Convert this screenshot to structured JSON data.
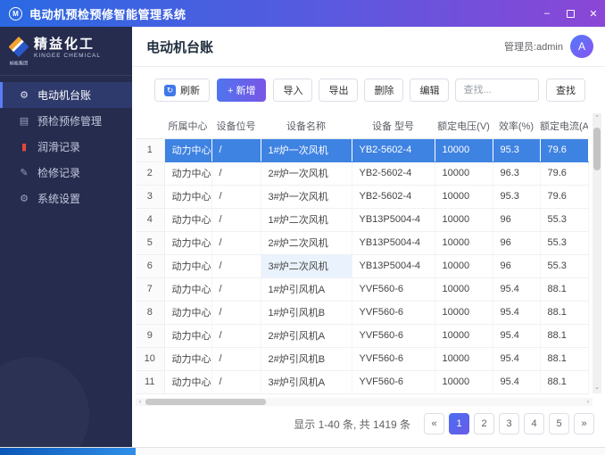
{
  "window": {
    "title": "电动机预检预修智能管理系统",
    "icon_letter": "M",
    "controls": {
      "minimize": "–",
      "close": "✕"
    }
  },
  "sidebar": {
    "logo": {
      "name": "精益化工",
      "sub": "KINGEE CHEMICAL",
      "group": "榆能集团"
    },
    "items": [
      {
        "id": "motor-ledger",
        "label": "电动机台账",
        "icon": "gear-icon",
        "glyph": "⚙",
        "active": true
      },
      {
        "id": "inspection-mgmt",
        "label": "预检预修管理",
        "icon": "clipboard-icon",
        "glyph": "▤",
        "active": false
      },
      {
        "id": "lubrication-records",
        "label": "润滑记录",
        "icon": "oil-icon",
        "glyph": "▮",
        "color": "#e2483c",
        "active": false
      },
      {
        "id": "repair-records",
        "label": "检修记录",
        "icon": "wrench-icon",
        "glyph": "✎",
        "active": false
      },
      {
        "id": "system-settings",
        "label": "系统设置",
        "icon": "settings-gear-icon",
        "glyph": "⚙",
        "active": false
      }
    ]
  },
  "header": {
    "title": "电动机台账",
    "user": "管理员:admin",
    "avatar": "A"
  },
  "toolbar": {
    "refresh": "刷新",
    "refresh_glyph": "↻",
    "add": "+ 新增",
    "import": "导入",
    "export": "导出",
    "delete": "删除",
    "edit": "编辑",
    "search_placeholder": "查找...",
    "search": "查找"
  },
  "table": {
    "columns": [
      "",
      "所属中心",
      "设备位号",
      "设备名称",
      "设备 型号",
      "额定电压(V)",
      "效率(%)",
      "额定电流(A)"
    ],
    "selected_row_index": 0,
    "hover_cell": {
      "row": 5,
      "col": 3
    },
    "rows": [
      [
        "1",
        "动力中心",
        "/",
        "1#炉一次风机",
        "YB2-5602-4",
        "10000",
        "95.3",
        "79.6"
      ],
      [
        "2",
        "动力中心",
        "/",
        "2#炉一次风机",
        "YB2-5602-4",
        "10000",
        "96.3",
        "79.6"
      ],
      [
        "3",
        "动力中心",
        "/",
        "3#炉一次风机",
        "YB2-5602-4",
        "10000",
        "95.3",
        "79.6"
      ],
      [
        "4",
        "动力中心",
        "/",
        "1#炉二次风机",
        "YB13P5004-4",
        "10000",
        "96",
        "55.3"
      ],
      [
        "5",
        "动力中心",
        "/",
        "2#炉二次风机",
        "YB13P5004-4",
        "10000",
        "96",
        "55.3"
      ],
      [
        "6",
        "动力中心",
        "/",
        "3#炉二次风机",
        "YB13P5004-4",
        "10000",
        "96",
        "55.3"
      ],
      [
        "7",
        "动力中心",
        "/",
        "1#炉引风机A",
        "YVF560-6",
        "10000",
        "95.4",
        "88.1"
      ],
      [
        "8",
        "动力中心",
        "/",
        "1#炉引风机B",
        "YVF560-6",
        "10000",
        "95.4",
        "88.1"
      ],
      [
        "9",
        "动力中心",
        "/",
        "2#炉引风机A",
        "YVF560-6",
        "10000",
        "95.4",
        "88.1"
      ],
      [
        "10",
        "动力中心",
        "/",
        "2#炉引风机B",
        "YVF560-6",
        "10000",
        "95.4",
        "88.1"
      ],
      [
        "11",
        "动力中心",
        "/",
        "3#炉引风机A",
        "YVF560-6",
        "10000",
        "95.4",
        "88.1"
      ]
    ]
  },
  "scrollbars": {
    "up": "⌃",
    "down": "⌄",
    "left": "‹",
    "right": "›"
  },
  "pagination": {
    "summary": "显示 1-40 条, 共 1419 条",
    "prev": "«",
    "next": "»",
    "pages": [
      "1",
      "2",
      "3",
      "4",
      "5"
    ],
    "active_page": "1"
  },
  "colors": {
    "titlebar_gradient_start": "#2a69e2",
    "titlebar_gradient_end": "#8b46d6",
    "sidebar_bg": "#262c4e",
    "selected_row": "#3e82e2",
    "accent_gradient_start": "#4f75ee",
    "accent_gradient_end": "#7a55e6",
    "taskbar_blue": "#0b57b8"
  }
}
